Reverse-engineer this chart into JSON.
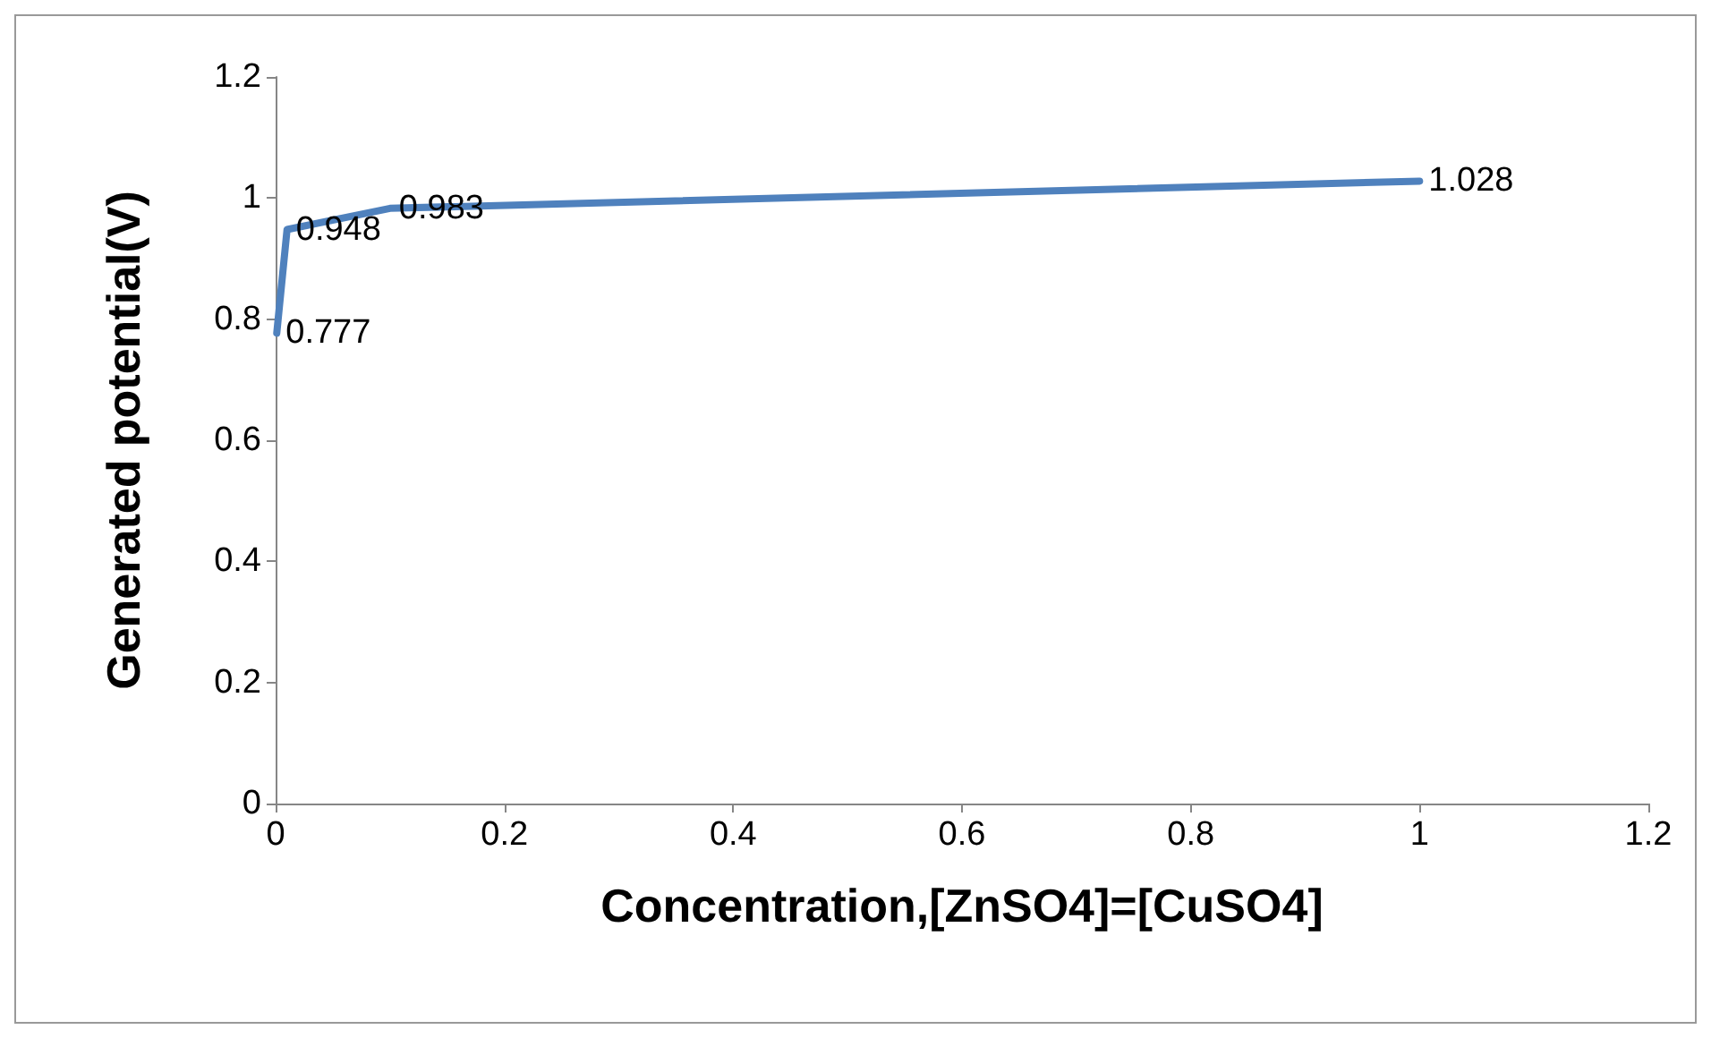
{
  "chart_data": {
    "type": "line",
    "xlabel": "Concentration,[ZnSO4]=[CuSO4]",
    "ylabel": "Generated potential(V)",
    "x": [
      0.001,
      0.01,
      0.1,
      1
    ],
    "series": [
      {
        "color": "#4f81bd",
        "values": [
          0.777,
          0.948,
          0.983,
          1.028
        ]
      }
    ],
    "xlim": [
      0,
      1.2
    ],
    "xticks": [
      0,
      0.2,
      0.4,
      0.6,
      0.8,
      1,
      1.2
    ],
    "ylim": [
      0,
      1.2
    ],
    "yticks": [
      0,
      0.2,
      0.4,
      0.6,
      0.8,
      1,
      1.2
    ],
    "data_labels": true,
    "grid": false,
    "marker": "none",
    "line_style": "solid"
  }
}
